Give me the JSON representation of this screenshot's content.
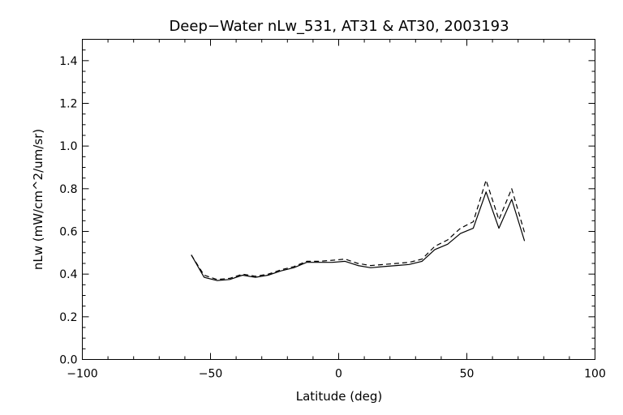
{
  "chart_data": {
    "type": "line",
    "title": "Deep−Water nLw_531, AT31 & AT30, 2003193",
    "xlabel": "Latitude (deg)",
    "ylabel": "nLw (mW/cm^2/um/sr)",
    "xlim": [
      -100,
      100
    ],
    "ylim": [
      0,
      1.5
    ],
    "x_ticks": [
      -100,
      -50,
      0,
      50,
      100
    ],
    "x_tick_labels": [
      "−100",
      "−50",
      "0",
      "50",
      "100"
    ],
    "y_ticks": [
      0.0,
      0.2,
      0.4,
      0.6,
      0.8,
      1.0,
      1.2,
      1.4
    ],
    "y_tick_labels": [
      "0.0",
      "0.2",
      "0.4",
      "0.6",
      "0.8",
      "1.0",
      "1.2",
      "1.4"
    ],
    "grid": false,
    "legend": "none",
    "series": [
      {
        "style": "solid",
        "color": "#000000",
        "x": [
          -57.5,
          -52.5,
          -47.5,
          -42.5,
          -37.5,
          -32.5,
          -27.5,
          -22.5,
          -17.5,
          -12.5,
          -7.5,
          -2.5,
          2.5,
          7.5,
          12.5,
          17.5,
          22.5,
          27.5,
          32.5,
          37.5,
          42.5,
          47.5,
          52.5,
          57.5,
          62.5,
          67.5,
          72.5
        ],
        "y": [
          0.49,
          0.385,
          0.37,
          0.375,
          0.395,
          0.385,
          0.395,
          0.415,
          0.43,
          0.455,
          0.455,
          0.455,
          0.46,
          0.44,
          0.43,
          0.435,
          0.44,
          0.445,
          0.46,
          0.515,
          0.54,
          0.59,
          0.615,
          0.785,
          0.615,
          0.75,
          0.555
        ]
      },
      {
        "style": "dashed",
        "color": "#000000",
        "x": [
          -57.5,
          -52.5,
          -47.5,
          -42.5,
          -37.5,
          -32.5,
          -27.5,
          -22.5,
          -17.5,
          -12.5,
          -7.5,
          -2.5,
          2.5,
          7.5,
          12.5,
          17.5,
          22.5,
          27.5,
          32.5,
          37.5,
          42.5,
          47.5,
          52.5,
          57.5,
          62.5,
          67.5,
          72.5
        ],
        "y": [
          0.49,
          0.395,
          0.375,
          0.38,
          0.4,
          0.39,
          0.4,
          0.42,
          0.435,
          0.46,
          0.46,
          0.465,
          0.47,
          0.45,
          0.44,
          0.445,
          0.45,
          0.455,
          0.47,
          0.53,
          0.56,
          0.615,
          0.645,
          0.84,
          0.655,
          0.8,
          0.595
        ]
      }
    ]
  }
}
